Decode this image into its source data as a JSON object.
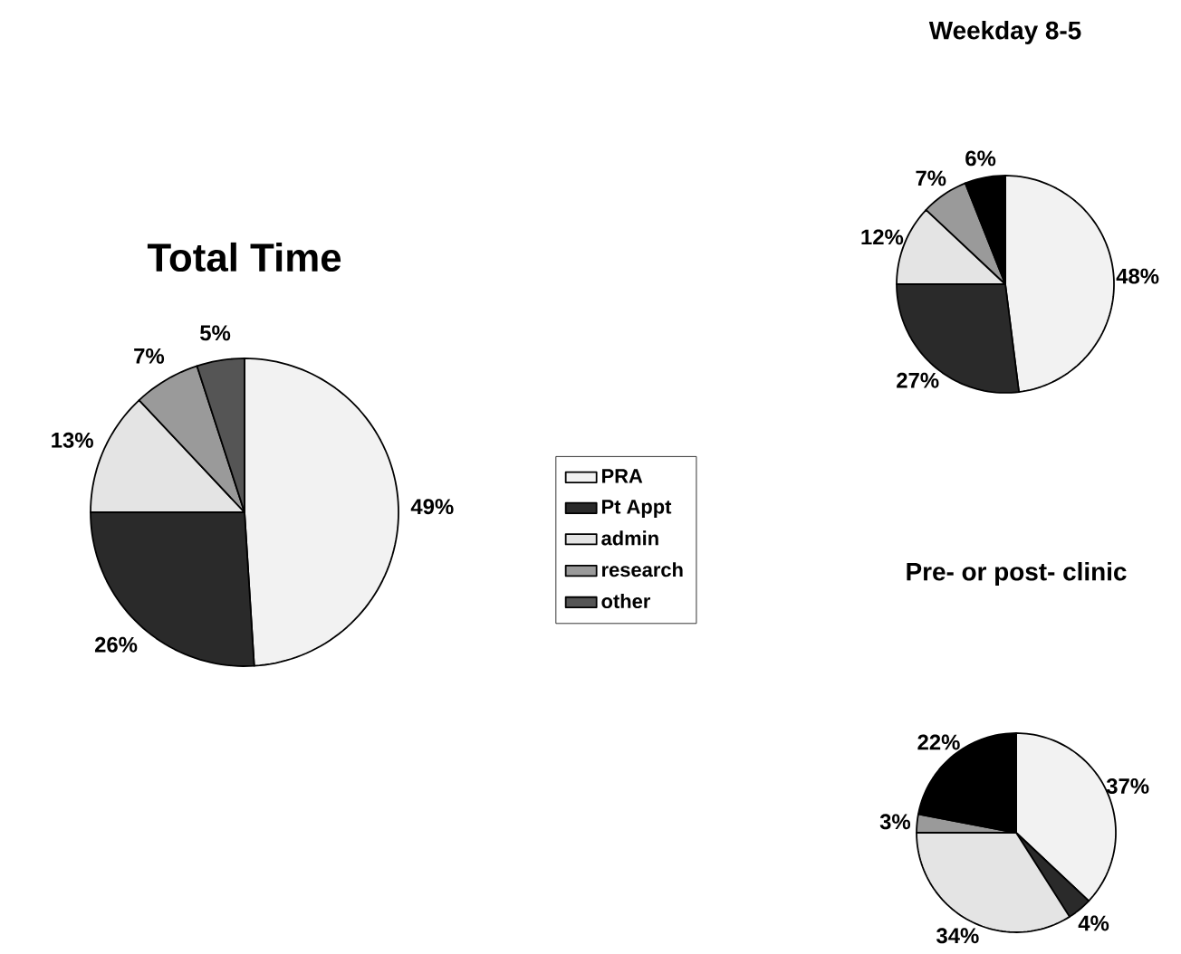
{
  "chart_data": [
    {
      "type": "pie",
      "title": "Total Time",
      "categories": [
        "PRA",
        "Pt Appt",
        "admin",
        "research",
        "other"
      ],
      "values": [
        49,
        26,
        13,
        7,
        5
      ],
      "value_labels": [
        "49%",
        "26%",
        "13%",
        "7%",
        "5%"
      ],
      "colors": [
        "#f2f2f2",
        "#2a2a2a",
        "#e4e4e4",
        "#9a9a9a",
        "#555555"
      ],
      "legend": "right"
    },
    {
      "type": "pie",
      "title": "Weekday 8-5",
      "categories": [
        null,
        null,
        null,
        null,
        null
      ],
      "values": [
        48,
        27,
        12,
        7,
        6
      ],
      "value_labels": [
        "48%",
        "27%",
        "12%",
        "7%",
        "6%"
      ],
      "colors": [
        "#f2f2f2",
        "#2a2a2a",
        "#e4e4e4",
        "#9a9a9a",
        "#000000"
      ]
    },
    {
      "type": "pie",
      "title": "Pre- or post- clinic",
      "categories": [
        null,
        null,
        null,
        null,
        null
      ],
      "values": [
        37,
        4,
        34,
        3,
        22
      ],
      "value_labels": [
        "37%",
        "4%",
        "34%",
        "3%",
        "22%"
      ],
      "colors": [
        "#f2f2f2",
        "#2a2a2a",
        "#e4e4e4",
        "#9a9a9a",
        "#000000"
      ]
    }
  ]
}
